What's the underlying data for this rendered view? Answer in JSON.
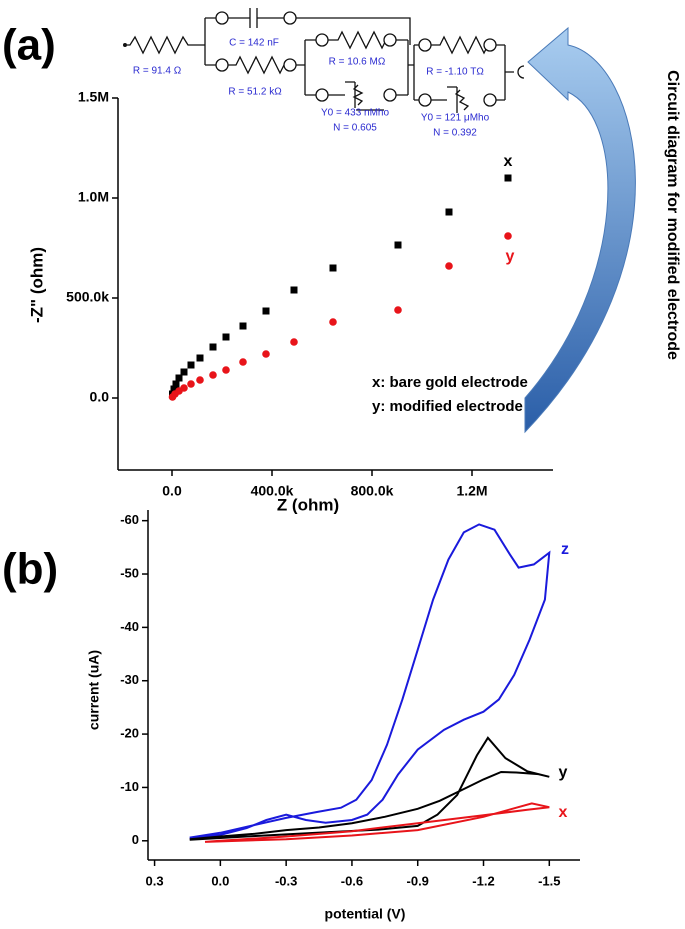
{
  "chart_data": [
    {
      "type": "scatter",
      "panel_label": "(a)",
      "xlabel": "Z (ohm)",
      "ylabel": "-Z\" (ohm)",
      "xlim": [
        -216000,
        1524000
      ],
      "ylim": [
        -360000,
        1500000
      ],
      "xticks": [
        {
          "value": 0,
          "label": "0.0"
        },
        {
          "value": 400000,
          "label": "400.0k"
        },
        {
          "value": 800000,
          "label": "800.0k"
        },
        {
          "value": 1200000,
          "label": "1.2M"
        }
      ],
      "yticks": [
        {
          "value": 0,
          "label": "0.0"
        },
        {
          "value": 500000,
          "label": "500.0k"
        },
        {
          "value": 1000000,
          "label": "1.0M"
        },
        {
          "value": 1500000,
          "label": "1.5M"
        }
      ],
      "series": [
        {
          "name": "x",
          "color": "#000000",
          "marker": "square",
          "x": [
            1344000,
            1108000,
            904000,
            644000,
            488000,
            376000,
            284000,
            216000,
            164000,
            112000,
            76000,
            48000,
            28000,
            16000,
            8000,
            2000
          ],
          "values": [
            1100000,
            930000,
            765000,
            650000,
            540000,
            435000,
            360000,
            305000,
            255000,
            200000,
            165000,
            130000,
            100000,
            70000,
            45000,
            20000
          ]
        },
        {
          "name": "y",
          "color": "#e8141a",
          "marker": "circle",
          "x": [
            1344000,
            1108000,
            904000,
            644000,
            488000,
            376000,
            284000,
            216000,
            164000,
            112000,
            76000,
            48000,
            28000,
            12000,
            2000
          ],
          "values": [
            810000,
            660000,
            440000,
            380000,
            280000,
            220000,
            180000,
            140000,
            115000,
            90000,
            70000,
            50000,
            35000,
            20000,
            5000
          ]
        }
      ],
      "annotations": [
        "x: bare gold electrode",
        "y: modified electrode"
      ],
      "circuit_labels": [
        "R = 91.4 Ω",
        "C = 142 nF",
        "R = 51.2 kΩ",
        "R = 10.6 MΩ",
        "Y0 = 433 nMho",
        "N = 0.605",
        "R = -1.10 TΩ",
        "Y0 = 121 μMho",
        "N = 0.392"
      ],
      "arrow_label": "Circuit diagram for modified electrode"
    },
    {
      "type": "line",
      "panel_label": "(b)",
      "xlabel": "potential (V)",
      "ylabel": "current (uA)",
      "xlim": [
        0.33,
        -1.64
      ],
      "ylim": [
        3.6,
        -62
      ],
      "xticks": [
        0.3,
        {
          "value": 0,
          "label": "0.0"
        },
        -0.3,
        -0.6,
        -0.9,
        -1.2,
        -1.5
      ],
      "yticks": [
        0,
        -10,
        -20,
        -30,
        -40,
        -50,
        -60
      ],
      "series": [
        {
          "name": "z",
          "color": "#1a1adc",
          "x": [
            0.14,
            0,
            -0.16,
            -0.3,
            -0.44,
            -0.55,
            -0.62,
            -0.69,
            -0.76,
            -0.83,
            -0.9,
            -0.97,
            -1.04,
            -1.11,
            -1.18,
            -1.25,
            -1.32,
            -1.36,
            -1.43,
            -1.5,
            -1.48,
            -1.41,
            -1.34,
            -1.27,
            -1.2,
            -1.11,
            -1.02,
            -0.9,
            -0.81,
            -0.74,
            -0.67,
            -0.6,
            -0.48,
            -0.39,
            -0.3,
            -0.21,
            -0.12,
            0,
            0.14
          ],
          "values": [
            -0.6,
            -1.5,
            -3.0,
            -4.3,
            -5.4,
            -6.2,
            -7.7,
            -11.4,
            -18.0,
            -26.5,
            -35.8,
            -45.2,
            -52.7,
            -57.8,
            -59.3,
            -58.3,
            -53.7,
            -51.2,
            -51.8,
            -54.0,
            -45.2,
            -37.7,
            -31.1,
            -26.5,
            -24.2,
            -22.7,
            -20.8,
            -17.1,
            -12.4,
            -7.7,
            -4.9,
            -3.9,
            -3.4,
            -3.9,
            -4.9,
            -3.9,
            -2.4,
            -1.1,
            -0.4
          ]
        },
        {
          "name": "y",
          "color": "#000000",
          "x": [
            0.14,
            -0.16,
            -0.44,
            -0.72,
            -0.9,
            -0.99,
            -1.08,
            -1.17,
            -1.22,
            -1.3,
            -1.4,
            -1.5,
            -1.45,
            -1.35,
            -1.28,
            -1.2,
            -1.1,
            -1.0,
            -0.9,
            -0.75,
            -0.6,
            -0.45,
            -0.3,
            -0.15,
            0,
            0.14
          ],
          "values": [
            -0.2,
            -0.9,
            -1.5,
            -2.1,
            -2.8,
            -4.9,
            -8.6,
            -16,
            -19.3,
            -15.5,
            -13,
            -12,
            -12.5,
            -12.8,
            -12.9,
            -11.5,
            -9.5,
            -7.5,
            -6,
            -4.5,
            -3.3,
            -2.5,
            -2,
            -1.3,
            -0.8,
            -0.3
          ]
        },
        {
          "name": "x",
          "color": "#e8141a",
          "x": [
            0.07,
            -0.3,
            -0.6,
            -0.9,
            -1.2,
            -1.42,
            -1.5,
            -1.4,
            -1.2,
            -0.9,
            -0.6,
            -0.3,
            0,
            0.07
          ],
          "values": [
            0.2,
            -0.3,
            -1,
            -2,
            -4.5,
            -7,
            -6.3,
            -5.8,
            -4.8,
            -3.3,
            -1.8,
            -0.8,
            0,
            0.2
          ]
        }
      ]
    }
  ]
}
